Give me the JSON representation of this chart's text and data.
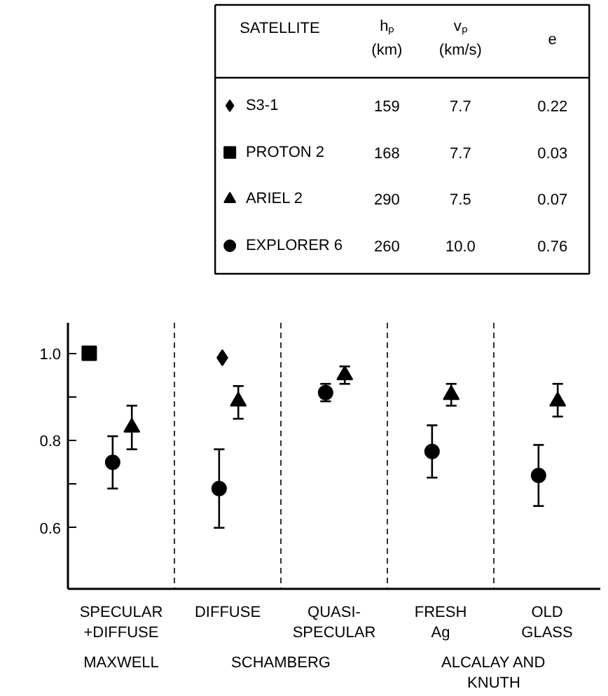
{
  "chart_data": {
    "type": "scatter",
    "legend_title": "SATELLITE",
    "legend": "top",
    "grid": "x",
    "categories": [
      "SPECULAR\n+DIFFUSE",
      "DIFFUSE",
      "QUASI-\nSPECULAR",
      "FRESH\nAg",
      "OLD\nGLASS"
    ],
    "ylim": [
      0.46,
      1.07
    ],
    "yticks": [
      0.6,
      {
        "value": 0.7,
        "label": null
      },
      0.8,
      {
        "value": 0.9,
        "label": null
      },
      {
        "value": 1.0,
        "label": "1.0"
      }
    ],
    "series": [
      {
        "name": "S3-1",
        "color": "#000000",
        "marker": "diamond",
        "values": [
          null,
          0.99,
          null,
          null,
          null
        ],
        "errors": [
          null,
          null,
          null,
          null,
          null
        ]
      },
      {
        "name": "PROTON 2",
        "color": "#000000",
        "marker": "square",
        "values": [
          1.0,
          null,
          null,
          null,
          null
        ],
        "errors": [
          null,
          null,
          null,
          null,
          null
        ]
      },
      {
        "name": "ARIEL 2",
        "color": "#000000",
        "marker": "triangle",
        "values": [
          0.83,
          0.89,
          0.95,
          0.905,
          0.89
        ],
        "errors": [
          [
            0.78,
            0.88
          ],
          [
            0.85,
            0.925
          ],
          [
            0.93,
            0.97
          ],
          [
            0.88,
            0.93
          ],
          [
            0.855,
            0.93
          ]
        ]
      },
      {
        "name": "EXPLORER 6",
        "color": "#000000",
        "marker": "circle",
        "values": [
          0.75,
          0.69,
          0.91,
          0.775,
          0.72
        ],
        "errors": [
          [
            0.69,
            0.81
          ],
          [
            0.6,
            0.78
          ],
          [
            0.89,
            0.93
          ],
          [
            0.715,
            0.835
          ],
          [
            0.65,
            0.79
          ]
        ]
      }
    ],
    "annotations": [
      "hₚ\n(km)",
      "vₚ\n(km/s)",
      "e",
      "159",
      "7.7",
      "0.22",
      "168",
      "7.7",
      "0.03",
      "290",
      "7.5",
      "0.07",
      "260",
      "10.0",
      "0.76",
      "MAXWELL",
      "SCHAMBERG",
      "ALCALAY AND\nKNUTH"
    ]
  }
}
